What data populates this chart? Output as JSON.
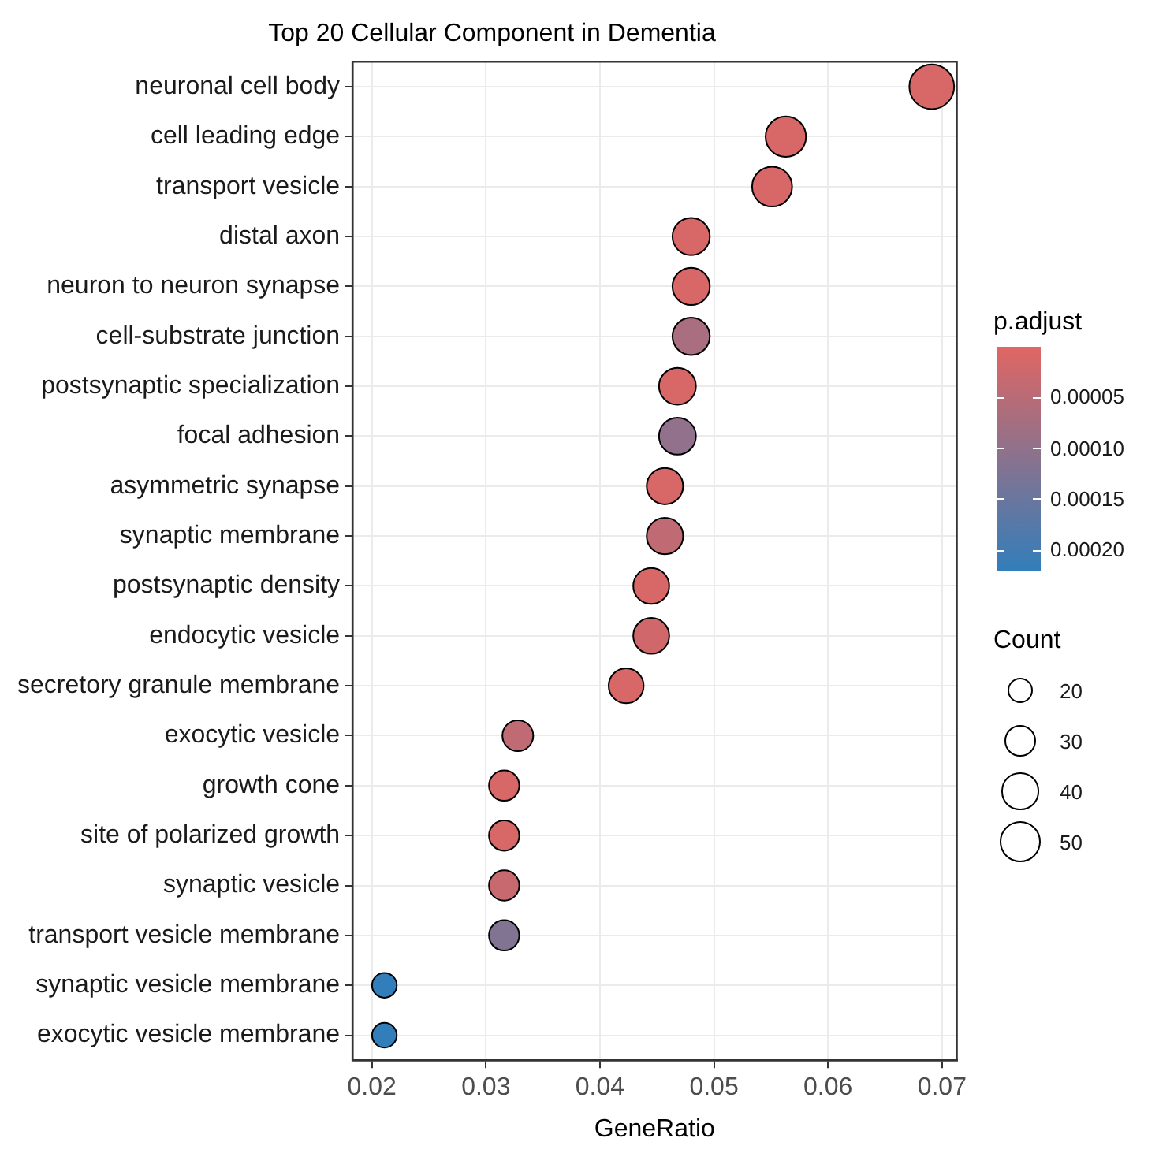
{
  "chart_data": {
    "type": "bubble",
    "title": "Top 20 Cellular Component in Dementia",
    "xlabel": "GeneRatio",
    "orientation": "horizontal",
    "categories": [
      "neuronal cell body",
      "cell leading edge",
      "transport vesicle",
      "distal axon",
      "neuron to neuron synapse",
      "cell-substrate junction",
      "postsynaptic specialization",
      "focal adhesion",
      "asymmetric synapse",
      "synaptic membrane",
      "postsynaptic density",
      "endocytic vesicle",
      "secretory granule membrane",
      "exocytic vesicle",
      "growth cone",
      "site of polarized growth",
      "synaptic vesicle",
      "transport vesicle membrane",
      "synaptic vesicle membrane",
      "exocytic vesicle membrane"
    ],
    "values": [
      0.0691,
      0.0563,
      0.0551,
      0.048,
      0.048,
      0.048,
      0.0468,
      0.0468,
      0.0457,
      0.0457,
      0.0445,
      0.0445,
      0.0423,
      0.0328,
      0.0316,
      0.0316,
      0.0316,
      0.0316,
      0.0211,
      0.0211
    ],
    "sizes": [
      59,
      48,
      47,
      41,
      41,
      41,
      40,
      40,
      39,
      39,
      38,
      38,
      36,
      28,
      27,
      27,
      27,
      27,
      18,
      18
    ],
    "size_legend": [
      20,
      30,
      40,
      50
    ],
    "cvalues": [
      1e-05,
      1e-05,
      1e-05,
      1e-05,
      1e-05,
      7e-05,
      1e-05,
      0.0001,
      1e-05,
      4e-05,
      1e-05,
      2e-05,
      1e-05,
      4e-05,
      1e-05,
      1e-05,
      3e-05,
      0.00012,
      0.00022,
      0.00022
    ],
    "clabel": "p.adjust",
    "legend_title": "Count",
    "clim": [
      0,
      0.00022
    ],
    "cticks": [
      {
        "value": 5e-05,
        "label": "0.00005"
      },
      {
        "value": 0.0001,
        "label": "0.00010"
      },
      {
        "value": 0.00015,
        "label": "0.00015"
      },
      {
        "value": 0.0002,
        "label": "0.00020"
      }
    ],
    "xlim": [
      0.0183,
      0.0713
    ],
    "xticks": [
      0.02,
      0.03,
      0.04,
      0.05,
      0.06,
      0.07
    ],
    "grid": true,
    "marker": "circle"
  }
}
